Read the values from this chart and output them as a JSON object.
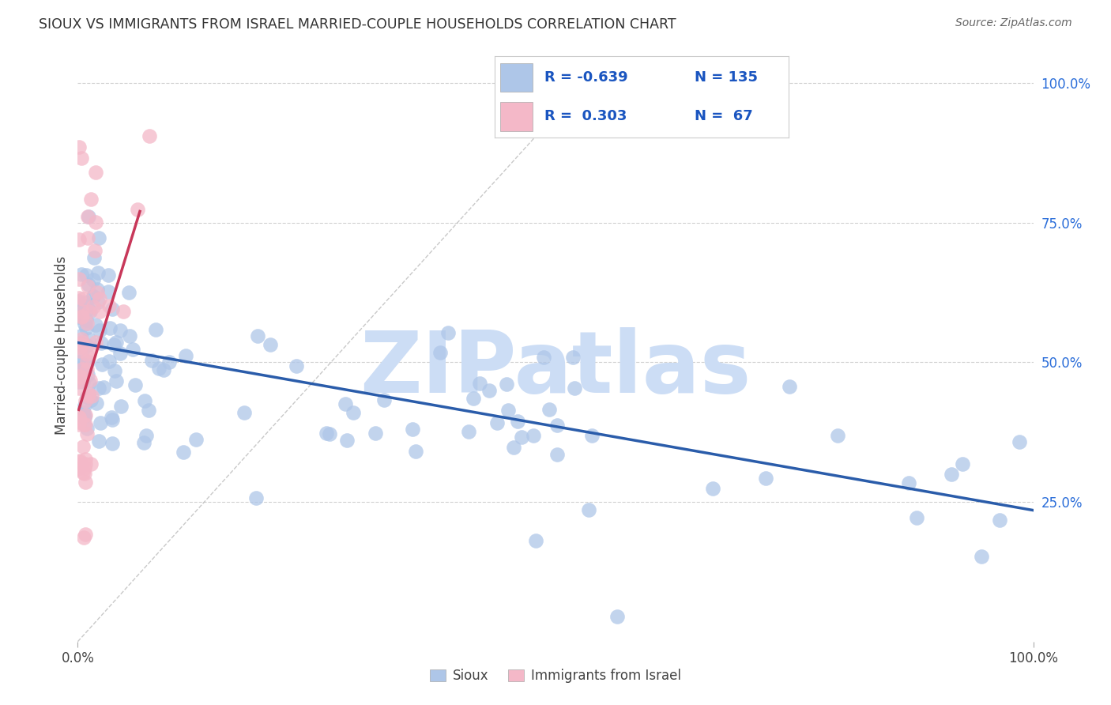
{
  "title": "SIOUX VS IMMIGRANTS FROM ISRAEL MARRIED-COUPLE HOUSEHOLDS CORRELATION CHART",
  "source": "Source: ZipAtlas.com",
  "ylabel": "Married-couple Households",
  "y_tick_labels": [
    "100.0%",
    "75.0%",
    "50.0%",
    "25.0%"
  ],
  "y_tick_values": [
    1.0,
    0.75,
    0.5,
    0.25
  ],
  "legend_entries": [
    {
      "label": "Sioux",
      "R": "-0.639",
      "N": "135",
      "color": "#aec6e8",
      "line_color": "#2a5caa"
    },
    {
      "label": "Immigrants from Israel",
      "R": "0.303",
      "N": "67",
      "color": "#f4b8c8",
      "line_color": "#c8385a"
    }
  ],
  "watermark": "ZIPatlas",
  "watermark_color": "#ccddf5",
  "background_color": "#ffffff",
  "grid_color": "#cccccc",
  "xlim": [
    0.0,
    1.0
  ],
  "ylim": [
    0.0,
    1.06
  ]
}
